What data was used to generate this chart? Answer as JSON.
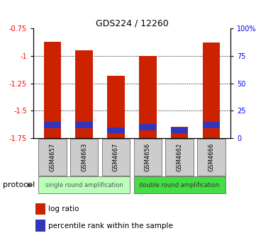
{
  "title": "GDS224 / 12260",
  "samples": [
    "GSM4657",
    "GSM4663",
    "GSM4667",
    "GSM4656",
    "GSM4662",
    "GSM4666"
  ],
  "log_ratios": [
    -0.87,
    -0.95,
    -1.18,
    -1.0,
    -1.65,
    -0.88
  ],
  "blue_bar_heights": [
    0.055,
    0.055,
    0.055,
    0.055,
    0.055,
    0.055
  ],
  "blue_bar_tops": [
    -1.63,
    -1.63,
    -1.68,
    -1.65,
    -1.68,
    -1.63
  ],
  "ymin": -1.75,
  "ymax": -0.75,
  "yticks": [
    -1.75,
    -1.5,
    -1.25,
    -1.0,
    -0.75
  ],
  "ytick_labels": [
    "-1.75",
    "-1.5",
    "-1.25",
    "-1",
    "-0.75"
  ],
  "right_yticks_pct": [
    0,
    25,
    50,
    75,
    100
  ],
  "right_ytick_labels": [
    "0",
    "25",
    "50",
    "75",
    "100%"
  ],
  "bar_color_red": "#cc2200",
  "bar_color_blue": "#3333bb",
  "group1_label": "single round amplification",
  "group2_label": "double round amplification",
  "group1_color": "#bbffbb",
  "group2_color": "#44dd44",
  "protocol_label": "protocol",
  "bar_width": 0.55,
  "group1_samples": [
    0,
    1,
    2
  ],
  "group2_samples": [
    3,
    4,
    5
  ],
  "legend_red_label": "log ratio",
  "legend_blue_label": "percentile rank within the sample",
  "sample_box_color": "#cccccc"
}
